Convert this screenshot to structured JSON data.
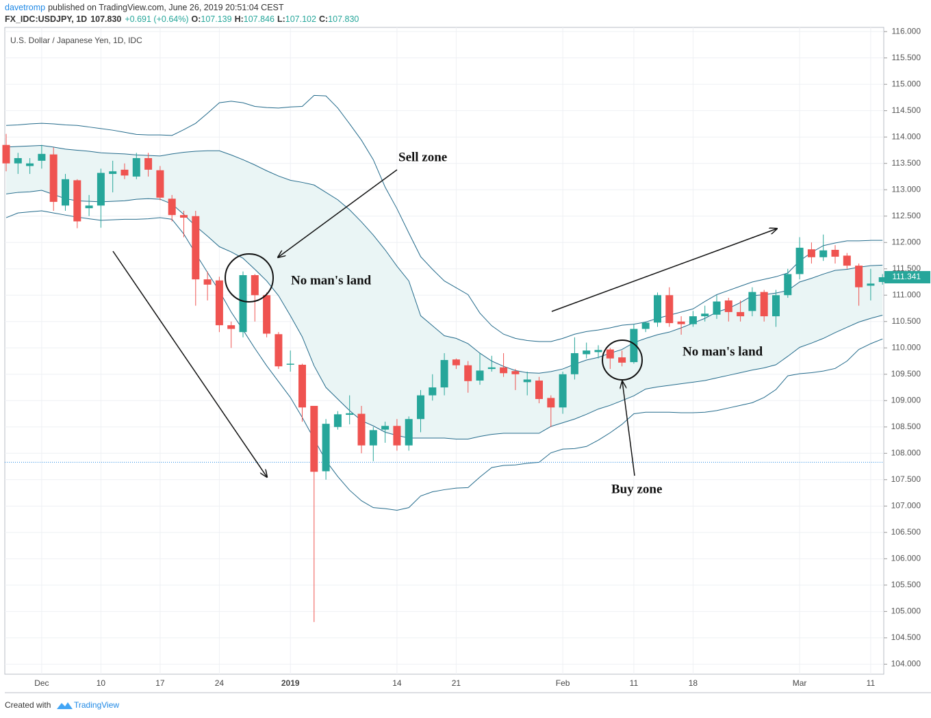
{
  "header": {
    "author": "davetromp",
    "published": "published on TradingView.com, June 26, 2019 20:51:04 CEST",
    "symbol": "FX_IDC:USDJPY, 1D",
    "price": "107.830",
    "change": "+0.691 (+0.64%)",
    "open_label": "O:",
    "open": "107.139",
    "high_label": "H:",
    "high": "107.846",
    "low_label": "L:",
    "low": "107.102",
    "close_label": "C:",
    "close": "107.830"
  },
  "footer": {
    "created": "Created with",
    "brand": "TradingView"
  },
  "chart_data": {
    "type": "candlestick",
    "title": "U.S. Dollar / Japanese Yen, 1D, IDC",
    "categories": [
      null,
      null,
      null,
      "Dec",
      null,
      null,
      null,
      null,
      "10",
      null,
      null,
      null,
      null,
      "17",
      null,
      null,
      null,
      null,
      "24",
      null,
      null,
      null,
      null,
      null,
      "2019",
      null,
      null,
      null,
      null,
      null,
      null,
      null,
      null,
      "14",
      null,
      null,
      null,
      null,
      "21",
      null,
      null,
      null,
      null,
      null,
      null,
      null,
      null,
      "Feb",
      null,
      null,
      null,
      null,
      null,
      "11",
      null,
      null,
      null,
      null,
      "18",
      null,
      null,
      null,
      null,
      null,
      null,
      null,
      null,
      "Mar",
      null,
      null,
      null,
      null,
      null,
      "11",
      null
    ],
    "open": [
      113.85,
      113.5,
      113.45,
      113.55,
      113.67,
      112.7,
      113.18,
      112.65,
      112.7,
      113.3,
      113.38,
      113.25,
      113.6,
      113.37,
      112.83,
      112.52,
      112.5,
      111.3,
      111.28,
      110.43,
      110.3,
      111.38,
      111.0,
      110.26,
      109.68,
      109.68,
      108.9,
      107.66,
      108.5,
      108.73,
      108.75,
      108.15,
      108.45,
      108.52,
      108.15,
      108.65,
      109.1,
      109.25,
      109.78,
      109.67,
      109.38,
      109.6,
      109.63,
      109.56,
      109.35,
      109.38,
      109.05,
      108.87,
      109.5,
      109.88,
      109.92,
      109.97,
      109.82,
      109.73,
      110.36,
      110.48,
      111.0,
      110.5,
      110.45,
      110.6,
      110.63,
      110.9,
      110.68,
      110.7,
      111.06,
      110.6,
      111.0,
      111.4,
      111.87,
      111.72,
      111.86,
      111.75,
      111.56,
      111.18,
      111.25
    ],
    "high": [
      114.06,
      113.7,
      113.6,
      113.85,
      113.8,
      113.3,
      113.2,
      112.9,
      113.4,
      113.55,
      113.5,
      113.7,
      113.7,
      113.45,
      112.9,
      112.6,
      112.6,
      111.45,
      111.35,
      110.5,
      111.45,
      111.4,
      111.05,
      110.3,
      109.95,
      109.7,
      108.9,
      108.65,
      108.8,
      109.1,
      108.9,
      108.5,
      108.6,
      108.65,
      108.7,
      109.2,
      109.5,
      109.9,
      109.8,
      109.75,
      109.9,
      109.85,
      109.9,
      109.6,
      109.55,
      109.45,
      109.1,
      109.55,
      110.2,
      110.1,
      110.05,
      110.0,
      109.95,
      110.45,
      110.5,
      111.05,
      111.15,
      110.6,
      110.7,
      110.8,
      111.0,
      110.95,
      110.9,
      111.15,
      111.1,
      111.1,
      111.5,
      112.1,
      112.0,
      112.15,
      111.95,
      111.8,
      111.6,
      111.5,
      111.4
    ],
    "low": [
      113.35,
      113.3,
      113.3,
      113.4,
      112.6,
      112.6,
      112.27,
      112.5,
      112.28,
      112.95,
      113.2,
      113.2,
      113.25,
      112.8,
      112.4,
      112.1,
      110.8,
      110.9,
      110.3,
      110.0,
      110.2,
      110.5,
      110.2,
      109.6,
      109.55,
      108.6,
      104.8,
      107.5,
      108.45,
      108.55,
      108.0,
      107.85,
      108.2,
      108.05,
      108.05,
      108.4,
      109.0,
      109.1,
      109.6,
      109.15,
      109.3,
      109.55,
      109.45,
      109.2,
      109.1,
      108.95,
      108.5,
      108.75,
      109.4,
      109.8,
      109.8,
      109.6,
      109.65,
      109.7,
      110.3,
      110.4,
      110.4,
      110.25,
      110.4,
      110.5,
      110.55,
      110.5,
      110.5,
      110.6,
      110.5,
      110.4,
      110.95,
      111.3,
      111.6,
      111.65,
      111.6,
      111.5,
      110.8,
      110.9,
      111.2
    ],
    "close": [
      113.5,
      113.6,
      113.5,
      113.68,
      112.77,
      113.2,
      112.4,
      112.7,
      113.32,
      113.35,
      113.27,
      113.6,
      113.38,
      112.85,
      112.52,
      112.47,
      111.3,
      111.2,
      110.43,
      110.36,
      111.38,
      111.0,
      110.27,
      109.65,
      109.7,
      108.87,
      107.65,
      108.56,
      108.74,
      108.76,
      108.15,
      108.44,
      108.52,
      108.15,
      108.65,
      109.1,
      109.25,
      109.77,
      109.67,
      109.37,
      109.57,
      109.63,
      109.52,
      109.5,
      109.4,
      109.03,
      108.87,
      109.5,
      109.9,
      109.95,
      109.96,
      109.8,
      109.72,
      110.36,
      110.48,
      111.0,
      110.47,
      110.45,
      110.6,
      110.65,
      110.88,
      110.68,
      110.6,
      111.06,
      110.6,
      111.0,
      111.4,
      111.9,
      111.72,
      111.85,
      111.73,
      111.56,
      111.15,
      111.22,
      111.34
    ],
    "up_color": "#26a69a",
    "down_color": "#ef5350",
    "bands": [
      {
        "color": "#21698a",
        "values": [
          114.22,
          114.23,
          114.25,
          114.26,
          114.25,
          114.23,
          114.22,
          114.19,
          114.16,
          114.13,
          114.09,
          114.05,
          114.04,
          114.04,
          114.03,
          114.14,
          114.26,
          114.45,
          114.65,
          114.68,
          114.65,
          114.58,
          114.56,
          114.55,
          114.57,
          114.58,
          114.79,
          114.78,
          114.55,
          114.25,
          113.94,
          113.57,
          113.05,
          112.64,
          112.18,
          111.73,
          111.49,
          111.27,
          111.14,
          111.01,
          110.66,
          110.42,
          110.26,
          110.18,
          110.14,
          110.12,
          110.12,
          110.18,
          110.26,
          110.31,
          110.34,
          110.38,
          110.43,
          110.45,
          110.49,
          110.56,
          110.62,
          110.68,
          110.74,
          110.88,
          111.01,
          111.09,
          111.17,
          111.25,
          111.3,
          111.35,
          111.42,
          111.65,
          111.81,
          111.94,
          111.99,
          112.03,
          112.03,
          112.04,
          112.04
        ]
      },
      {
        "color": "#21698a",
        "values": [
          113.81,
          113.82,
          113.83,
          113.84,
          113.81,
          113.77,
          113.75,
          113.73,
          113.7,
          113.69,
          113.68,
          113.66,
          113.65,
          113.64,
          113.68,
          113.71,
          113.73,
          113.74,
          113.74,
          113.66,
          113.57,
          113.47,
          113.36,
          113.26,
          113.18,
          113.14,
          113.09,
          112.95,
          112.81,
          112.62,
          112.39,
          112.14,
          111.86,
          111.55,
          111.27,
          110.61,
          110.42,
          110.23,
          110.18,
          110.08,
          109.9,
          109.75,
          109.65,
          109.57,
          109.53,
          109.52,
          109.55,
          109.6,
          109.69,
          109.77,
          109.82,
          109.9,
          109.97,
          110.1,
          110.18,
          110.25,
          110.3,
          110.38,
          110.47,
          110.56,
          110.68,
          110.75,
          110.86,
          110.99,
          111.01,
          111.04,
          111.09,
          111.25,
          111.32,
          111.4,
          111.47,
          111.49,
          111.53,
          111.56,
          111.57
        ]
      },
      {
        "color": "#21698a",
        "values": [
          112.92,
          112.95,
          112.96,
          112.99,
          112.91,
          112.83,
          112.79,
          112.78,
          112.77,
          112.78,
          112.79,
          112.82,
          112.83,
          112.82,
          112.73,
          112.53,
          112.31,
          112.12,
          111.92,
          111.82,
          111.7,
          111.49,
          111.27,
          110.99,
          110.61,
          110.21,
          109.66,
          109.25,
          109.03,
          108.81,
          108.62,
          108.52,
          108.4,
          108.34,
          108.29,
          108.29,
          108.29,
          108.29,
          108.27,
          108.27,
          108.32,
          108.36,
          108.38,
          108.38,
          108.38,
          108.38,
          108.51,
          108.58,
          108.65,
          108.74,
          108.84,
          108.91,
          109.0,
          109.09,
          109.22,
          109.26,
          109.29,
          109.32,
          109.35,
          109.38,
          109.43,
          109.48,
          109.53,
          109.58,
          109.62,
          109.68,
          109.84,
          110.01,
          110.09,
          110.18,
          110.29,
          110.39,
          110.49,
          110.56,
          110.62
        ]
      },
      {
        "color": "#21698a",
        "values": [
          112.47,
          112.56,
          112.58,
          112.6,
          112.56,
          112.52,
          112.48,
          112.45,
          112.42,
          112.43,
          112.44,
          112.44,
          112.45,
          112.47,
          112.44,
          112.16,
          111.79,
          111.43,
          111.08,
          110.68,
          110.34,
          109.99,
          109.66,
          109.36,
          109.06,
          108.68,
          108.27,
          107.86,
          107.56,
          107.3,
          107.1,
          106.97,
          106.95,
          106.92,
          106.97,
          107.19,
          107.27,
          107.31,
          107.34,
          107.35,
          107.55,
          107.73,
          107.77,
          107.78,
          107.81,
          107.83,
          108.01,
          108.08,
          108.09,
          108.13,
          108.25,
          108.39,
          108.55,
          108.75,
          108.78,
          108.78,
          108.78,
          108.77,
          108.77,
          108.78,
          108.81,
          108.86,
          108.91,
          108.96,
          109.06,
          109.21,
          109.47,
          109.51,
          109.53,
          109.56,
          109.61,
          109.75,
          109.97,
          110.08,
          110.17
        ]
      }
    ],
    "band_fill": "#eaf5f5",
    "price_line": 107.83,
    "price_line_color": "#1e88e5",
    "last_price": {
      "value": 111.341,
      "label": "111.341"
    },
    "ylim": [
      103.81,
      116.08
    ],
    "yticks": [
      {
        "value": 104,
        "label": "104.000"
      },
      {
        "value": 104.5,
        "label": "104.500"
      },
      {
        "value": 105,
        "label": "105.000"
      },
      {
        "value": 105.5,
        "label": "105.500"
      },
      {
        "value": 106,
        "label": "106.000"
      },
      {
        "value": 106.5,
        "label": "106.500"
      },
      {
        "value": 107,
        "label": "107.000"
      },
      {
        "value": 107.5,
        "label": "107.500"
      },
      {
        "value": 108,
        "label": "108.000"
      },
      {
        "value": 108.5,
        "label": "108.500"
      },
      {
        "value": 109,
        "label": "109.000"
      },
      {
        "value": 109.5,
        "label": "109.500"
      },
      {
        "value": 110,
        "label": "110.000"
      },
      {
        "value": 110.5,
        "label": "110.500"
      },
      {
        "value": 111,
        "label": "111.000"
      },
      {
        "value": 111.5,
        "label": "111.500"
      },
      {
        "value": 112,
        "label": "112.000"
      },
      {
        "value": 112.5,
        "label": "112.500"
      },
      {
        "value": 113,
        "label": "113.000"
      },
      {
        "value": 113.5,
        "label": "113.500"
      },
      {
        "value": 114,
        "label": "114.000"
      },
      {
        "value": 114.5,
        "label": "114.500"
      },
      {
        "value": 115,
        "label": "115.000"
      },
      {
        "value": 115.5,
        "label": "115.500"
      },
      {
        "value": 116,
        "label": "116.000"
      }
    ],
    "grid": true,
    "annotations": [
      "Sell zone",
      "No man's land",
      "No man's land",
      "Buy zone"
    ]
  }
}
